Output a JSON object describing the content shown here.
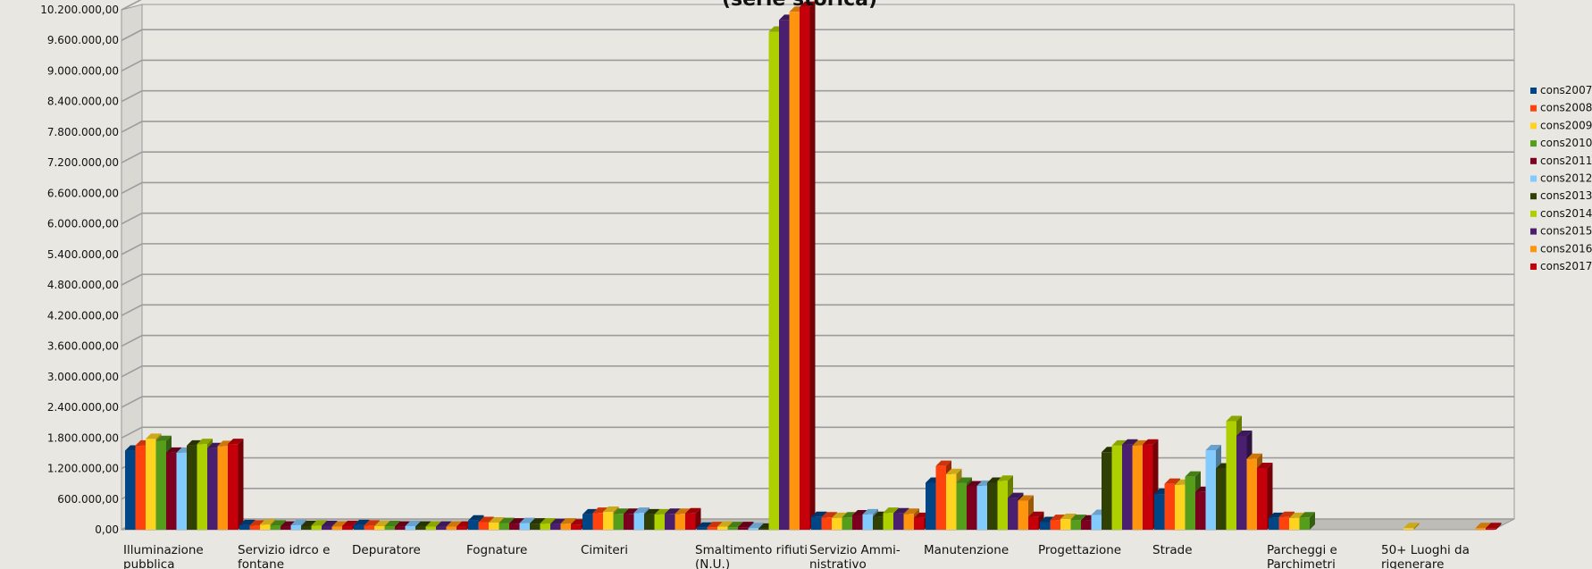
{
  "chart_data": {
    "type": "bar",
    "title": "(serie storica)",
    "xlabel": "",
    "ylabel": "",
    "ylim": [
      0,
      10200000
    ],
    "yticks": [
      "0,00",
      "600.000,00",
      "1.200.000,00",
      "1.800.000,00",
      "2.400.000,00",
      "3.000.000,00",
      "3.600.000,00",
      "4.200.000,00",
      "4.800.000,00",
      "5.400.000,00",
      "6.000.000,00",
      "6.600.000,00",
      "7.200.000,00",
      "7.800.000,00",
      "8.400.000,00",
      "9.000.000,00",
      "9.600.000,00",
      "10.200.000,00"
    ],
    "grid": true,
    "legend_position": "right",
    "categories": [
      "Illuminazione\npubblica",
      "Servizio idrco e\nfontane",
      "Depuratore",
      "Fognature",
      "Cimiteri",
      "Smaltimento rifiuti\n(N.U.)",
      "Servizio Ammi-\nnistrativo",
      "Manutenzione",
      "Progettazione",
      "Strade",
      "Parcheggi e\nParchimetri",
      "50+ Luoghi da\nrigenerare"
    ],
    "series": [
      {
        "name": "cons2007",
        "color": "#004586",
        "values": [
          1550000,
          90000,
          90000,
          180000,
          300000,
          40000,
          250000,
          920000,
          150000,
          700000,
          230000,
          0
        ]
      },
      {
        "name": "cons2008",
        "color": "#ff420e",
        "values": [
          1650000,
          80000,
          80000,
          150000,
          330000,
          50000,
          240000,
          1250000,
          190000,
          900000,
          250000,
          0
        ]
      },
      {
        "name": "cons2009",
        "color": "#ffd320",
        "values": [
          1780000,
          100000,
          70000,
          140000,
          350000,
          60000,
          230000,
          1090000,
          210000,
          880000,
          230000,
          30000
        ]
      },
      {
        "name": "cons2010",
        "color": "#579d1c",
        "values": [
          1740000,
          80000,
          70000,
          130000,
          310000,
          50000,
          240000,
          920000,
          190000,
          1040000,
          240000,
          0
        ]
      },
      {
        "name": "cons2011",
        "color": "#7e0021",
        "values": [
          1510000,
          60000,
          60000,
          120000,
          310000,
          50000,
          280000,
          850000,
          180000,
          740000,
          0,
          0
        ]
      },
      {
        "name": "cons2012",
        "color": "#83caff",
        "values": [
          1510000,
          90000,
          70000,
          130000,
          330000,
          30000,
          300000,
          860000,
          290000,
          1560000,
          0,
          0
        ]
      },
      {
        "name": "cons2013",
        "color": "#314004",
        "values": [
          1650000,
          70000,
          60000,
          120000,
          300000,
          20000,
          250000,
          920000,
          1520000,
          1200000,
          0,
          0
        ]
      },
      {
        "name": "cons2014",
        "color": "#aecf00",
        "values": [
          1680000,
          80000,
          60000,
          120000,
          300000,
          9770000,
          330000,
          960000,
          1650000,
          2130000,
          0,
          0
        ]
      },
      {
        "name": "cons2015",
        "color": "#4b1f6f",
        "values": [
          1600000,
          70000,
          60000,
          110000,
          310000,
          10000000,
          320000,
          620000,
          1670000,
          1840000,
          0,
          0
        ]
      },
      {
        "name": "cons2016",
        "color": "#ff950e",
        "values": [
          1640000,
          60000,
          60000,
          120000,
          310000,
          10160000,
          310000,
          570000,
          1650000,
          1390000,
          0,
          30000
        ]
      },
      {
        "name": "cons2017",
        "color": "#c5000b",
        "values": [
          1680000,
          70000,
          60000,
          100000,
          320000,
          10260000,
          230000,
          250000,
          1670000,
          1210000,
          0,
          30000
        ]
      }
    ]
  }
}
